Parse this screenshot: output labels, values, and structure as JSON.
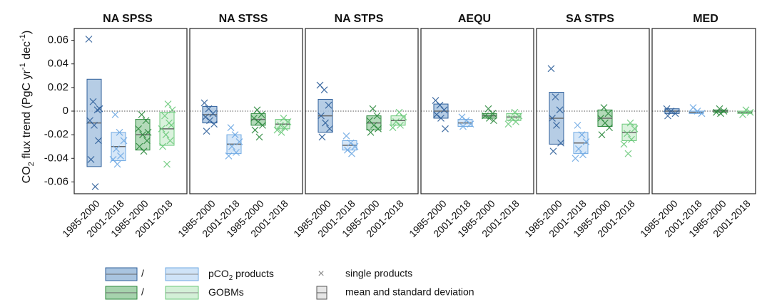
{
  "chart_data": [
    {
      "type": "box",
      "title": "NA SPSS",
      "categories": [
        "1985-2000",
        "2001-2018",
        "1985-2000",
        "2001-2018"
      ],
      "ylabel": [
        "CO",
        "2",
        " flux trend (PgC yr",
        "-1",
        " dec",
        "-1",
        ")"
      ],
      "ylim": [
        -0.07,
        0.07
      ],
      "yticks": [
        0.06,
        0.04,
        0.02,
        0,
        -0.02,
        -0.04,
        -0.06
      ],
      "groups": [
        {
          "mean": -0.01,
          "sd": 0.037,
          "points": [
            0.061,
            0.008,
            0.001,
            -0.008,
            -0.012,
            -0.025,
            -0.041,
            -0.064,
            0.002
          ]
        },
        {
          "mean": -0.03,
          "sd": 0.012,
          "points": [
            -0.003,
            -0.018,
            -0.025,
            -0.032,
            -0.038,
            -0.041,
            -0.045
          ]
        },
        {
          "mean": -0.02,
          "sd": 0.013,
          "points": [
            -0.003,
            -0.008,
            -0.015,
            -0.02,
            -0.025,
            -0.03,
            -0.034,
            -0.018
          ]
        },
        {
          "mean": -0.015,
          "sd": 0.014,
          "points": [
            0.006,
            0.001,
            -0.004,
            -0.01,
            -0.015,
            -0.02,
            -0.025,
            -0.03,
            -0.045,
            -0.012
          ]
        }
      ]
    },
    {
      "type": "box",
      "title": "NA STSS",
      "categories": [
        "1985-2000",
        "2001-2018",
        "1985-2000",
        "2001-2018"
      ],
      "groups": [
        {
          "mean": -0.003,
          "sd": 0.007,
          "points": [
            0.007,
            0.002,
            -0.002,
            -0.005,
            -0.008,
            -0.011,
            -0.017
          ]
        },
        {
          "mean": -0.028,
          "sd": 0.008,
          "points": [
            -0.014,
            -0.02,
            -0.026,
            -0.03,
            -0.035,
            -0.038
          ]
        },
        {
          "mean": -0.007,
          "sd": 0.005,
          "points": [
            0.001,
            -0.003,
            -0.006,
            -0.009,
            -0.012,
            -0.016,
            -0.022
          ]
        },
        {
          "mean": -0.011,
          "sd": 0.004,
          "points": [
            -0.006,
            -0.009,
            -0.012,
            -0.014,
            -0.016,
            -0.018
          ]
        }
      ]
    },
    {
      "type": "box",
      "title": "NA STPS",
      "categories": [
        "1985-2000",
        "2001-2018",
        "1985-2000",
        "2001-2018"
      ],
      "groups": [
        {
          "mean": -0.004,
          "sd": 0.014,
          "points": [
            0.022,
            0.018,
            0.005,
            -0.004,
            -0.01,
            -0.015,
            -0.022
          ]
        },
        {
          "mean": -0.029,
          "sd": 0.004,
          "points": [
            -0.021,
            -0.027,
            -0.03,
            -0.033,
            -0.036
          ]
        },
        {
          "mean": -0.01,
          "sd": 0.006,
          "points": [
            0.002,
            -0.004,
            -0.008,
            -0.012,
            -0.015,
            -0.018
          ]
        },
        {
          "mean": -0.008,
          "sd": 0.004,
          "points": [
            -0.001,
            -0.005,
            -0.009,
            -0.012,
            -0.014
          ]
        }
      ]
    },
    {
      "type": "box",
      "title": "AEQU",
      "categories": [
        "1985-2000",
        "2001-2018",
        "1985-2000",
        "2001-2018"
      ],
      "groups": [
        {
          "mean": 0,
          "sd": 0.006,
          "points": [
            0.009,
            0.005,
            0.001,
            -0.003,
            -0.006,
            -0.015
          ]
        },
        {
          "mean": -0.01,
          "sd": 0.003,
          "points": [
            -0.005,
            -0.008,
            -0.011,
            -0.013
          ]
        },
        {
          "mean": -0.004,
          "sd": 0.002,
          "points": [
            0.002,
            -0.002,
            -0.004,
            -0.006,
            -0.008
          ]
        },
        {
          "mean": -0.005,
          "sd": 0.003,
          "points": [
            -0.001,
            -0.004,
            -0.006,
            -0.009,
            -0.011
          ]
        }
      ]
    },
    {
      "type": "box",
      "title": "SA STPS",
      "categories": [
        "1985-2000",
        "2001-2018",
        "1985-2000",
        "2001-2018"
      ],
      "groups": [
        {
          "mean": -0.006,
          "sd": 0.022,
          "points": [
            0.036,
            0.012,
            0.001,
            -0.006,
            -0.012,
            -0.027,
            -0.034
          ]
        },
        {
          "mean": -0.027,
          "sd": 0.009,
          "points": [
            -0.012,
            -0.02,
            -0.026,
            -0.032,
            -0.037,
            -0.04
          ]
        },
        {
          "mean": -0.006,
          "sd": 0.007,
          "points": [
            0.003,
            -0.002,
            -0.006,
            -0.01,
            -0.014,
            -0.02
          ]
        },
        {
          "mean": -0.018,
          "sd": 0.007,
          "points": [
            -0.01,
            -0.015,
            -0.019,
            -0.024,
            -0.028,
            -0.036
          ]
        }
      ]
    },
    {
      "type": "box",
      "title": "MED",
      "categories": [
        "1985-2000",
        "2001-2018",
        "1985-2000",
        "2001-2018"
      ],
      "groups": [
        {
          "mean": 0,
          "sd": 0.002,
          "points": [
            0.002,
            0,
            -0.002,
            -0.004
          ]
        },
        {
          "mean": -0.001,
          "sd": 0.001,
          "points": [
            0.003,
            0,
            -0.002
          ]
        },
        {
          "mean": 0,
          "sd": 0.001,
          "points": [
            0.002,
            0,
            -0.001,
            -0.002
          ]
        },
        {
          "mean": -0.001,
          "sd": 0.001,
          "points": [
            0.001,
            -0.001,
            -0.003
          ]
        }
      ]
    }
  ],
  "styles": [
    {
      "fill": "#a9c4e0",
      "stroke": "#2f5f9a"
    },
    {
      "fill": "#cfe3f7",
      "stroke": "#6fa9e3"
    },
    {
      "fill": "#a6d3ad",
      "stroke": "#2d8a3e"
    },
    {
      "fill": "#d3f0d7",
      "stroke": "#6cc97b"
    }
  ],
  "legend": {
    "separator": "/",
    "items": [
      [
        "pCO",
        "2",
        " products"
      ],
      [
        "GOBMs"
      ]
    ],
    "points_label": "single products",
    "box_label": "mean and standard deviation"
  }
}
